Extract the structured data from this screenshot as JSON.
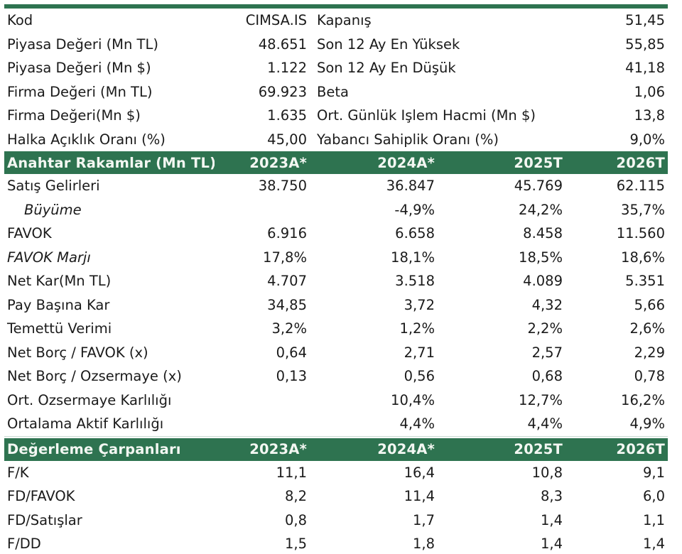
{
  "colors": {
    "header_green": "#2e7350",
    "header_text": "#f3f7f2",
    "text": "#1a1a1a"
  },
  "info": [
    {
      "label": "Kod",
      "value": "CIMSA.IS",
      "label2": "Kapanış",
      "value2": "51,45"
    },
    {
      "label": "Piyasa Değeri (Mn TL)",
      "value": "48.651",
      "label2": "Son 12 Ay En Yüksek",
      "value2": "55,85"
    },
    {
      "label": "Piyasa Değeri (Mn $)",
      "value": "1.122",
      "label2": "Son 12 Ay En Düşük",
      "value2": "41,18"
    },
    {
      "label": "Firma Değeri (Mn TL)",
      "value": "69.923",
      "label2": "Beta",
      "value2": "1,06"
    },
    {
      "label": "Firma Değeri(Mn $)",
      "value": "1.635",
      "label2": "Ort. Günlük Işlem Hacmi (Mn $)",
      "value2": "13,8"
    },
    {
      "label": "Halka Açıklık Oranı (%)",
      "value": "45,00",
      "label2": "Yabancı Sahiplik Oranı (%)",
      "value2": "9,0%"
    }
  ],
  "key_figures": {
    "header": [
      "Anahtar Rakamlar (Mn TL)",
      "2023A*",
      "2024A*",
      "2025T",
      "2026T"
    ],
    "rows": [
      {
        "label": "Satış Gelirleri",
        "values": [
          "38.750",
          "36.847",
          "45.769",
          "62.115"
        ]
      },
      {
        "label": "Büyüme",
        "values": [
          "",
          "-4,9%",
          "24,2%",
          "35,7%"
        ]
      },
      {
        "label": "FAVOK",
        "values": [
          "6.916",
          "6.658",
          "8.458",
          "11.560"
        ]
      },
      {
        "label": "FAVOK Marjı",
        "values": [
          "17,8%",
          "18,1%",
          "18,5%",
          "18,6%"
        ]
      },
      {
        "label": "Net Kar(Mn TL)",
        "values": [
          "4.707",
          "3.518",
          "4.089",
          "5.351"
        ]
      },
      {
        "label": "Pay Başına Kar",
        "values": [
          "34,85",
          "3,72",
          "4,32",
          "5,66"
        ]
      },
      {
        "label": "Temettü Verimi",
        "values": [
          "3,2%",
          "1,2%",
          "2,2%",
          "2,6%"
        ]
      },
      {
        "label": "Net Borç / FAVOK (x)",
        "values": [
          "0,64",
          "2,71",
          "2,57",
          "2,29"
        ]
      },
      {
        "label": "Net Borç / Ozsermaye (x)",
        "values": [
          "0,13",
          "0,56",
          "0,68",
          "0,78"
        ]
      },
      {
        "label": "Ort. Ozsermaye Karlılığı",
        "values": [
          "",
          "10,4%",
          "12,7%",
          "16,2%"
        ]
      },
      {
        "label": "Ortalama Aktif Karlılığı",
        "values": [
          "",
          "4,4%",
          "4,4%",
          "4,9%"
        ]
      }
    ]
  },
  "multiples": {
    "header": [
      "Değerleme Çarpanları",
      "2023A*",
      "2024A*",
      "2025T",
      "2026T"
    ],
    "rows": [
      {
        "label": "F/K",
        "values": [
          "11,1",
          "16,4",
          "10,8",
          "9,1"
        ]
      },
      {
        "label": "FD/FAVOK",
        "values": [
          "8,2",
          "11,4",
          "8,3",
          "6,0"
        ]
      },
      {
        "label": "FD/Satışlar",
        "values": [
          "0,8",
          "1,7",
          "1,4",
          "1,1"
        ]
      },
      {
        "label": "F/DD",
        "values": [
          "1,5",
          "1,8",
          "1,4",
          "1,4"
        ]
      }
    ]
  }
}
